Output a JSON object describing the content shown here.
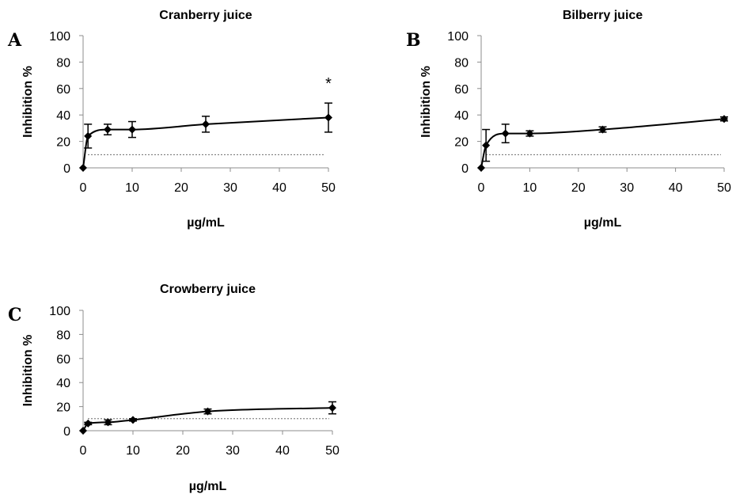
{
  "chart_data": [
    {
      "type": "line",
      "panel_letter": "A",
      "title": "Cranberry juice",
      "xlabel": "µg/mL",
      "ylabel": "Inhibition %",
      "xlim": [
        0,
        50
      ],
      "ylim": [
        0,
        100
      ],
      "xticks": [
        0,
        10,
        20,
        30,
        40,
        50
      ],
      "yticks": [
        0,
        20,
        40,
        60,
        80,
        100
      ],
      "reference_line": 10,
      "grid": false,
      "series": [
        {
          "x": [
            0,
            1,
            5,
            10,
            25,
            50
          ],
          "y": [
            0,
            24,
            29,
            29,
            33,
            38
          ],
          "error": [
            0,
            9,
            4,
            6,
            6,
            11
          ]
        }
      ],
      "annotations": [
        {
          "x": 50,
          "y": 38,
          "text": "*"
        }
      ]
    },
    {
      "type": "line",
      "panel_letter": "B",
      "title": "Bilberry juice",
      "xlabel": "µg/mL",
      "ylabel": "Inhibition %",
      "xlim": [
        0,
        50
      ],
      "ylim": [
        0,
        100
      ],
      "xticks": [
        0,
        10,
        20,
        30,
        40,
        50
      ],
      "yticks": [
        0,
        20,
        40,
        60,
        80,
        100
      ],
      "reference_line": 10,
      "grid": false,
      "series": [
        {
          "x": [
            0,
            1,
            5,
            10,
            25,
            50
          ],
          "y": [
            0,
            17,
            26,
            26,
            29,
            37
          ],
          "error": [
            0,
            12,
            7,
            2,
            2,
            1.5
          ]
        }
      ],
      "annotations": []
    },
    {
      "type": "line",
      "panel_letter": "C",
      "title": "Crowberry juice",
      "xlabel": "µg/mL",
      "ylabel": "Inhibition %",
      "xlim": [
        0,
        50
      ],
      "ylim": [
        0,
        100
      ],
      "xticks": [
        0,
        10,
        20,
        30,
        40,
        50
      ],
      "yticks": [
        0,
        20,
        40,
        60,
        80,
        100
      ],
      "reference_line": 10,
      "grid": false,
      "series": [
        {
          "x": [
            0,
            1,
            5,
            10,
            25,
            50
          ],
          "y": [
            0,
            6,
            7,
            9,
            16,
            19
          ],
          "error": [
            0,
            1,
            2,
            1,
            2,
            5
          ]
        }
      ],
      "annotations": []
    }
  ]
}
